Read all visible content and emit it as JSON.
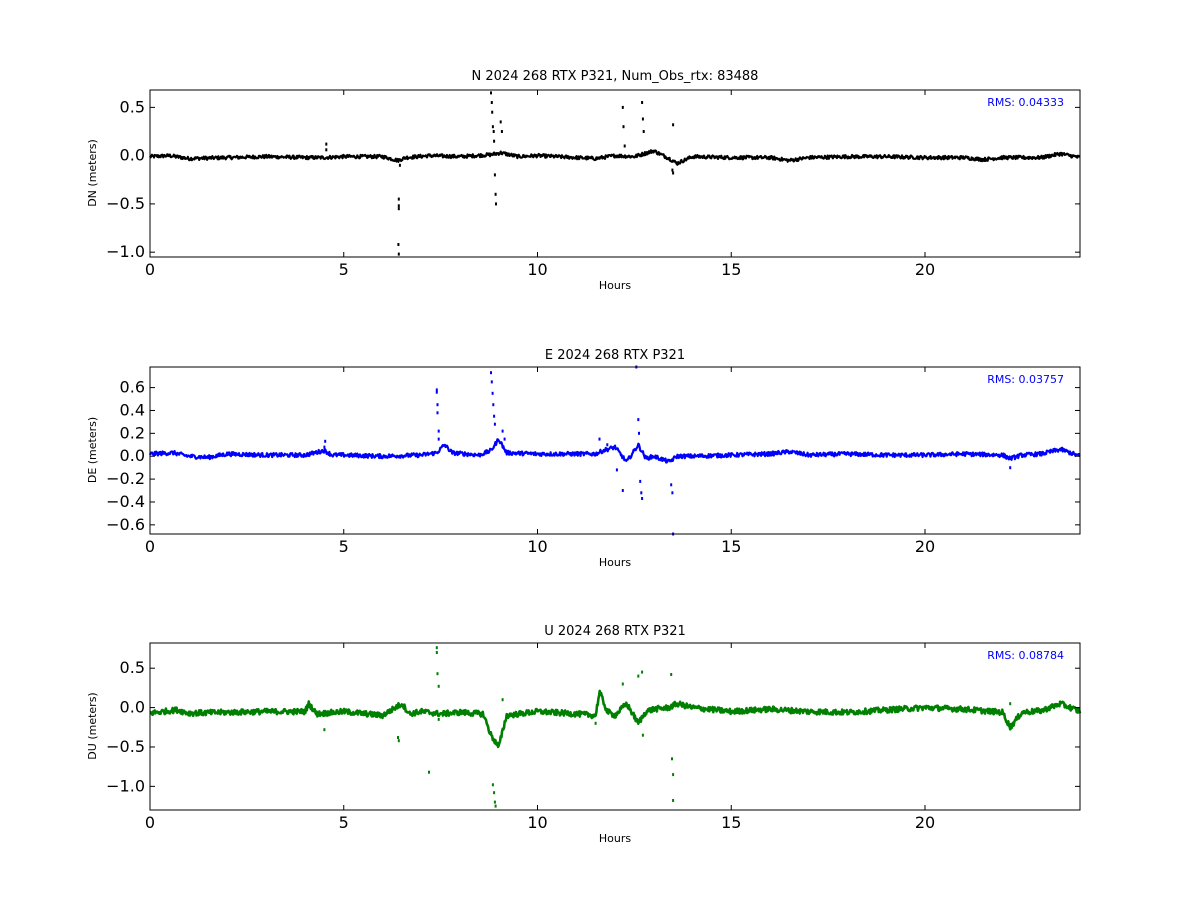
{
  "chart_data": [
    {
      "type": "scatter",
      "title": "N 2024 268 RTX  P321, Num_Obs_rtx: 83488",
      "xlabel": "Hours",
      "ylabel": "DN (meters)",
      "xlim": [
        0,
        24
      ],
      "ylim": [
        -1.05,
        0.68
      ],
      "xticks": [
        0,
        5,
        10,
        15,
        20
      ],
      "yticks": [
        0.5,
        0.0,
        -0.5,
        -1.0
      ],
      "ytick_labels": [
        "0.5",
        "0.0",
        "−0.5",
        "−1.0"
      ],
      "color": "#000000",
      "annotation": "RMS:  0.04333",
      "annotation_color": "#0000ff",
      "grid": false,
      "series": [
        {
          "baseline": [
            [
              0,
              -0.01
            ],
            [
              0.5,
              0.0
            ],
            [
              1,
              -0.03
            ],
            [
              2,
              -0.02
            ],
            [
              3,
              -0.01
            ],
            [
              4,
              -0.02
            ],
            [
              4.5,
              -0.02
            ],
            [
              5,
              -0.01
            ],
            [
              6,
              -0.01
            ],
            [
              6.4,
              -0.05
            ],
            [
              6.6,
              -0.02
            ],
            [
              7.2,
              0.0
            ],
            [
              8,
              -0.01
            ],
            [
              8.8,
              0.01
            ],
            [
              9.05,
              0.03
            ],
            [
              9.5,
              -0.01
            ],
            [
              10,
              0.0
            ],
            [
              11,
              -0.02
            ],
            [
              11.5,
              -0.03
            ],
            [
              12,
              0.0
            ],
            [
              12.5,
              -0.01
            ],
            [
              13,
              0.05
            ],
            [
              13.4,
              -0.03
            ],
            [
              13.6,
              -0.08
            ],
            [
              14,
              -0.01
            ],
            [
              15,
              -0.02
            ],
            [
              16,
              -0.02
            ],
            [
              16.5,
              -0.05
            ],
            [
              17,
              -0.02
            ],
            [
              18,
              -0.01
            ],
            [
              19,
              -0.01
            ],
            [
              20,
              -0.02
            ],
            [
              21,
              -0.02
            ],
            [
              21.5,
              -0.04
            ],
            [
              22,
              -0.02
            ],
            [
              23,
              -0.02
            ],
            [
              23.5,
              0.02
            ],
            [
              24,
              -0.02
            ]
          ],
          "outliers": [
            [
              4.55,
              0.12
            ],
            [
              4.55,
              0.06
            ],
            [
              6.42,
              -0.45
            ],
            [
              6.42,
              -0.52
            ],
            [
              6.42,
              -0.55
            ],
            [
              6.41,
              -0.92
            ],
            [
              6.42,
              -1.02
            ],
            [
              6.45,
              -0.1
            ],
            [
              8.8,
              0.65
            ],
            [
              8.82,
              0.55
            ],
            [
              8.83,
              0.45
            ],
            [
              8.85,
              0.3
            ],
            [
              8.87,
              0.25
            ],
            [
              8.88,
              0.15
            ],
            [
              8.9,
              -0.2
            ],
            [
              8.92,
              -0.4
            ],
            [
              8.93,
              -0.5
            ],
            [
              9.05,
              0.35
            ],
            [
              9.08,
              0.25
            ],
            [
              12.2,
              0.5
            ],
            [
              12.22,
              0.3
            ],
            [
              12.25,
              0.1
            ],
            [
              12.7,
              0.55
            ],
            [
              12.72,
              0.38
            ],
            [
              12.74,
              0.25
            ],
            [
              13.5,
              0.32
            ],
            [
              13.48,
              -0.15
            ],
            [
              13.5,
              -0.18
            ]
          ]
        }
      ]
    },
    {
      "type": "scatter",
      "title": "E 2024 268 RTX  P321",
      "xlabel": "Hours",
      "ylabel": "DE (meters)",
      "xlim": [
        0,
        24
      ],
      "ylim": [
        -0.68,
        0.78
      ],
      "xticks": [
        0,
        5,
        10,
        15,
        20
      ],
      "yticks": [
        0.6,
        0.4,
        0.2,
        0.0,
        -0.2,
        -0.4,
        -0.6
      ],
      "ytick_labels": [
        "0.6",
        "0.4",
        "0.2",
        "0.0",
        "−0.2",
        "−0.4",
        "−0.6"
      ],
      "color": "#0000ff",
      "annotation": "RMS:  0.03757",
      "annotation_color": "#0000ff",
      "grid": false,
      "series": [
        {
          "baseline": [
            [
              0,
              0.02
            ],
            [
              0.6,
              0.03
            ],
            [
              1,
              0.0
            ],
            [
              1.5,
              -0.01
            ],
            [
              2,
              0.02
            ],
            [
              3,
              0.01
            ],
            [
              4,
              0.01
            ],
            [
              4.5,
              0.05
            ],
            [
              4.7,
              0.01
            ],
            [
              5,
              0.01
            ],
            [
              6,
              0.0
            ],
            [
              7,
              0.01
            ],
            [
              7.4,
              0.03
            ],
            [
              7.6,
              0.1
            ],
            [
              7.8,
              0.03
            ],
            [
              8.5,
              0.01
            ],
            [
              8.8,
              0.05
            ],
            [
              9,
              0.15
            ],
            [
              9.2,
              0.03
            ],
            [
              10,
              0.02
            ],
            [
              11,
              0.02
            ],
            [
              11.5,
              0.02
            ],
            [
              11.7,
              0.05
            ],
            [
              12,
              0.08
            ],
            [
              12.3,
              -0.05
            ],
            [
              12.6,
              0.1
            ],
            [
              12.8,
              -0.02
            ],
            [
              13,
              0.0
            ],
            [
              13.4,
              -0.05
            ],
            [
              13.6,
              0.0
            ],
            [
              14,
              0.0
            ],
            [
              15,
              0.01
            ],
            [
              16,
              0.02
            ],
            [
              16.5,
              0.04
            ],
            [
              17,
              0.01
            ],
            [
              18,
              0.02
            ],
            [
              19,
              0.01
            ],
            [
              20,
              0.01
            ],
            [
              21,
              0.02
            ],
            [
              22,
              0.01
            ],
            [
              22.2,
              -0.02
            ],
            [
              22.5,
              0.01
            ],
            [
              23,
              0.02
            ],
            [
              23.5,
              0.06
            ],
            [
              24,
              0.0
            ]
          ],
          "outliers": [
            [
              4.52,
              0.13
            ],
            [
              4.5,
              0.08
            ],
            [
              7.4,
              0.58
            ],
            [
              7.4,
              0.56
            ],
            [
              7.42,
              0.45
            ],
            [
              7.42,
              0.38
            ],
            [
              7.45,
              0.22
            ],
            [
              7.45,
              0.15
            ],
            [
              8.8,
              0.73
            ],
            [
              8.82,
              0.65
            ],
            [
              8.84,
              0.55
            ],
            [
              8.86,
              0.45
            ],
            [
              8.88,
              0.35
            ],
            [
              8.9,
              0.28
            ],
            [
              9.1,
              0.22
            ],
            [
              9.15,
              0.15
            ],
            [
              11.6,
              0.15
            ],
            [
              11.8,
              0.1
            ],
            [
              12.05,
              -0.12
            ],
            [
              12.2,
              -0.3
            ],
            [
              12.55,
              0.78
            ],
            [
              12.6,
              0.32
            ],
            [
              12.62,
              0.2
            ],
            [
              12.65,
              -0.22
            ],
            [
              12.68,
              -0.32
            ],
            [
              12.7,
              -0.37
            ],
            [
              13.45,
              -0.25
            ],
            [
              13.48,
              -0.32
            ],
            [
              13.5,
              -0.68
            ],
            [
              22.2,
              -0.1
            ]
          ]
        }
      ]
    },
    {
      "type": "scatter",
      "title": "U 2024 268 RTX  P321",
      "xlabel": "Hours",
      "ylabel": "DU (meters)",
      "xlim": [
        0,
        24
      ],
      "ylim": [
        -1.3,
        0.82
      ],
      "xticks": [
        0,
        5,
        10,
        15,
        20
      ],
      "yticks": [
        0.5,
        0.0,
        -0.5,
        -1.0
      ],
      "ytick_labels": [
        "0.5",
        "0.0",
        "−0.5",
        "−1.0"
      ],
      "color": "#008000",
      "annotation": "RMS:  0.08784",
      "annotation_color": "#0000ff",
      "grid": false,
      "series": [
        {
          "baseline": [
            [
              0,
              -0.07
            ],
            [
              0.7,
              -0.03
            ],
            [
              1,
              -0.07
            ],
            [
              2,
              -0.06
            ],
            [
              3,
              -0.05
            ],
            [
              4,
              -0.05
            ],
            [
              4.1,
              0.05
            ],
            [
              4.3,
              -0.08
            ],
            [
              5,
              -0.05
            ],
            [
              6,
              -0.1
            ],
            [
              6.5,
              0.05
            ],
            [
              6.7,
              -0.08
            ],
            [
              7,
              -0.05
            ],
            [
              7.5,
              -0.08
            ],
            [
              8,
              -0.06
            ],
            [
              8.6,
              -0.08
            ],
            [
              8.8,
              -0.35
            ],
            [
              9,
              -0.5
            ],
            [
              9.2,
              -0.1
            ],
            [
              10,
              -0.05
            ],
            [
              11,
              -0.08
            ],
            [
              11.5,
              -0.1
            ],
            [
              11.6,
              0.2
            ],
            [
              11.8,
              -0.05
            ],
            [
              12,
              -0.1
            ],
            [
              12.3,
              0.05
            ],
            [
              12.6,
              -0.2
            ],
            [
              12.8,
              -0.05
            ],
            [
              13,
              -0.02
            ],
            [
              13.4,
              0.0
            ],
            [
              13.6,
              0.05
            ],
            [
              14,
              0.0
            ],
            [
              15,
              -0.05
            ],
            [
              16,
              -0.02
            ],
            [
              17,
              -0.05
            ],
            [
              18,
              -0.06
            ],
            [
              19,
              -0.03
            ],
            [
              20,
              0.0
            ],
            [
              21,
              -0.02
            ],
            [
              22,
              -0.06
            ],
            [
              22.2,
              -0.25
            ],
            [
              22.5,
              -0.06
            ],
            [
              23,
              -0.04
            ],
            [
              23.5,
              0.05
            ],
            [
              24,
              -0.05
            ]
          ],
          "outliers": [
            [
              4.5,
              -0.28
            ],
            [
              6.4,
              -0.38
            ],
            [
              6.42,
              -0.42
            ],
            [
              7.2,
              -0.82
            ],
            [
              7.4,
              0.76
            ],
            [
              7.4,
              0.7
            ],
            [
              7.42,
              0.43
            ],
            [
              7.45,
              0.27
            ],
            [
              7.45,
              -0.15
            ],
            [
              8.85,
              -0.98
            ],
            [
              8.88,
              -1.08
            ],
            [
              8.9,
              -1.2
            ],
            [
              8.92,
              -1.25
            ],
            [
              9.1,
              0.1
            ],
            [
              11.5,
              -0.2
            ],
            [
              12.2,
              0.3
            ],
            [
              12.6,
              0.4
            ],
            [
              12.7,
              0.45
            ],
            [
              12.72,
              -0.35
            ],
            [
              13.45,
              0.42
            ],
            [
              13.47,
              -0.65
            ],
            [
              13.5,
              -0.85
            ],
            [
              13.5,
              -1.18
            ],
            [
              22.2,
              0.05
            ]
          ]
        }
      ]
    }
  ]
}
